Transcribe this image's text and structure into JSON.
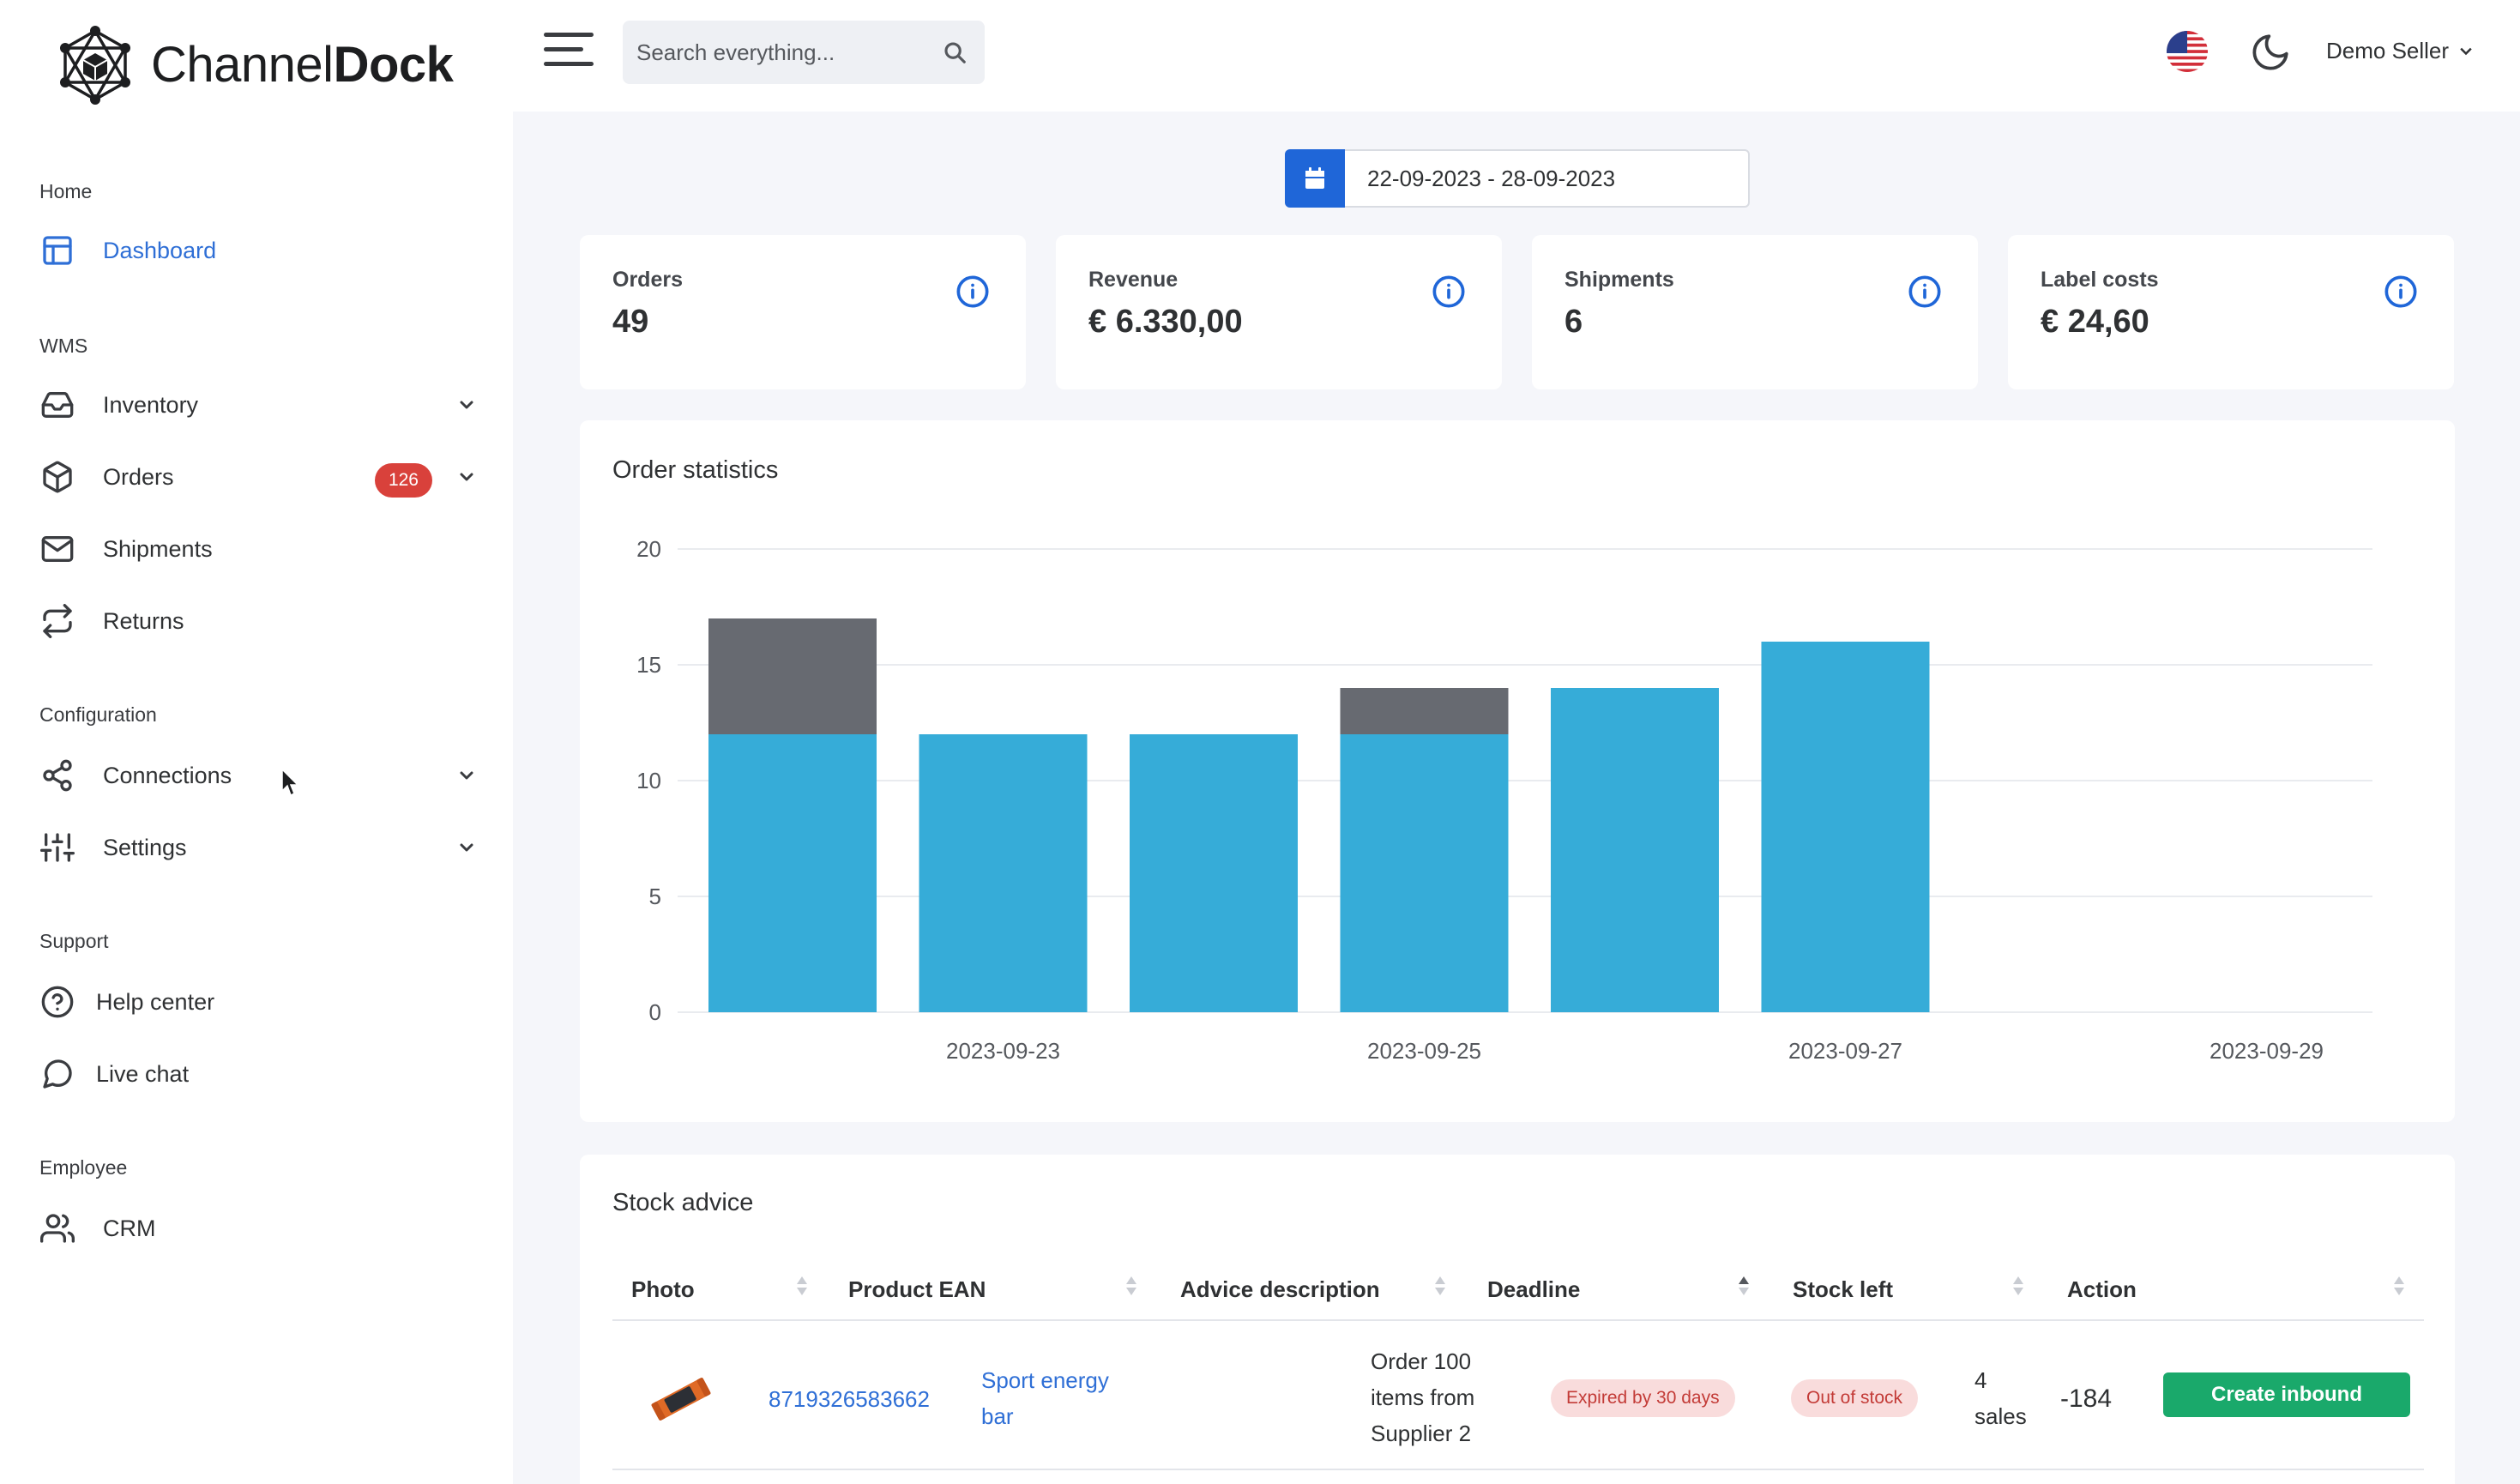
{
  "brand": {
    "name_light": "Channel",
    "name_bold": "Dock"
  },
  "sidebar": {
    "sections": [
      {
        "title": "Home"
      },
      {
        "title": "WMS"
      },
      {
        "title": "Configuration"
      },
      {
        "title": "Support"
      },
      {
        "title": "Employee"
      }
    ],
    "items": [
      {
        "label": "Dashboard",
        "icon": "dashboard-icon"
      },
      {
        "label": "Inventory",
        "icon": "inbox-icon"
      },
      {
        "label": "Orders",
        "icon": "box-icon",
        "badge": "126"
      },
      {
        "label": "Shipments",
        "icon": "mail-icon"
      },
      {
        "label": "Returns",
        "icon": "repeat-icon"
      },
      {
        "label": "Connections",
        "icon": "share-icon"
      },
      {
        "label": "Settings",
        "icon": "sliders-icon"
      },
      {
        "label": "Help center",
        "icon": "help-circle-icon"
      },
      {
        "label": "Live chat",
        "icon": "chat-bubble-icon"
      },
      {
        "label": "CRM",
        "icon": "users-icon"
      }
    ]
  },
  "topbar": {
    "search_placeholder": "Search everything...",
    "user_name": "Demo Seller"
  },
  "date_range": "22-09-2023 - 28-09-2023",
  "stats": [
    {
      "label": "Orders",
      "value": "49"
    },
    {
      "label": "Revenue",
      "value": "€ 6.330,00"
    },
    {
      "label": "Shipments",
      "value": "6"
    },
    {
      "label": "Label costs",
      "value": "€ 24,60"
    }
  ],
  "order_statistics": {
    "title": "Order statistics",
    "chart_data": {
      "type": "bar",
      "stacked": true,
      "categories": [
        "2023-09-22",
        "2023-09-23",
        "2023-09-24",
        "2023-09-25",
        "2023-09-26",
        "2023-09-27",
        "2023-09-28"
      ],
      "x_tick_labels": [
        "2023-09-23",
        "2023-09-25",
        "2023-09-27",
        "2023-09-29"
      ],
      "series": [
        {
          "values": [
            12,
            12,
            12,
            12,
            14,
            16,
            0
          ],
          "color": "#36acd8"
        },
        {
          "values": [
            5,
            0,
            0,
            2,
            0,
            0,
            0
          ],
          "color": "#676a71"
        }
      ],
      "ylim": [
        0,
        20
      ],
      "y_ticks": [
        0,
        5,
        10,
        15,
        20
      ],
      "grid": true
    }
  },
  "stock_advice": {
    "title": "Stock advice",
    "columns": [
      "Photo",
      "Product EAN",
      "Advice description",
      "Deadline",
      "Stock left",
      "Action"
    ],
    "rows": [
      {
        "ean": "8719326583662",
        "product_line1": "Sport energy",
        "product_line2": "bar",
        "advice_line1": "Order 100",
        "advice_line2": "items from",
        "advice_line3": "Supplier 2",
        "deadline": "Expired by 30 days",
        "stock_status": "Out of stock",
        "sales_line1": "4",
        "sales_line2": "sales",
        "stock_left": "-184",
        "action": "Create inbound"
      }
    ]
  }
}
